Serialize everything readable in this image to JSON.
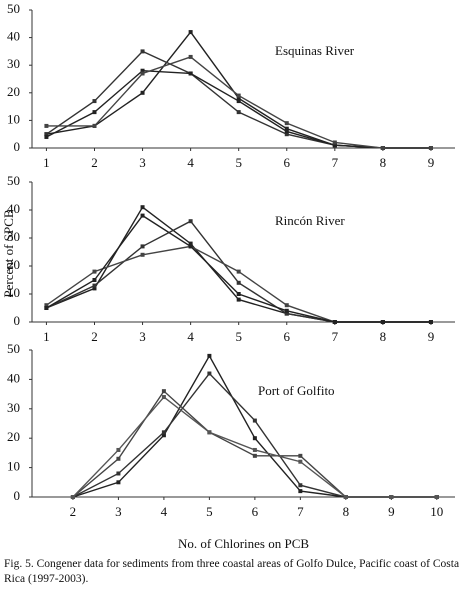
{
  "chart_data": [
    {
      "type": "line",
      "title": "Esquinas River",
      "x": [
        1,
        2,
        3,
        4,
        5,
        6,
        7,
        8,
        9
      ],
      "xlim": [
        0.7,
        9.5
      ],
      "xticks": [
        1,
        2,
        3,
        4,
        5,
        6,
        7,
        8,
        9
      ],
      "ylim": [
        0,
        50
      ],
      "yticks": [
        0,
        10,
        20,
        30,
        40,
        50
      ],
      "series": [
        {
          "color": "#222222",
          "values": [
            5,
            8,
            20,
            42,
            18,
            7,
            1,
            0,
            0
          ]
        },
        {
          "color": "#333333",
          "values": [
            5,
            17,
            35,
            27,
            13,
            5,
            1,
            0,
            0
          ]
        },
        {
          "color": "#222222",
          "values": [
            4,
            13,
            28,
            27,
            17,
            6,
            1,
            0,
            0
          ]
        },
        {
          "color": "#444444",
          "values": [
            8,
            8,
            27,
            33,
            19,
            9,
            2,
            0,
            0
          ]
        }
      ]
    },
    {
      "type": "line",
      "title": "Rincón River",
      "ylabel": "Percent of  SPCB",
      "x": [
        1,
        2,
        3,
        4,
        5,
        6,
        7,
        8,
        9
      ],
      "xlim": [
        0.7,
        9.5
      ],
      "xticks": [
        1,
        2,
        3,
        4,
        5,
        6,
        7,
        8,
        9
      ],
      "ylim": [
        0,
        50
      ],
      "yticks": [
        0,
        10,
        20,
        30,
        40,
        50
      ],
      "series": [
        {
          "color": "#222222",
          "values": [
            5,
            12,
            41,
            28,
            8,
            3,
            0,
            0,
            0
          ]
        },
        {
          "color": "#333333",
          "values": [
            5,
            13,
            27,
            36,
            14,
            3,
            0,
            0,
            0
          ]
        },
        {
          "color": "#444444",
          "values": [
            6,
            18,
            24,
            27,
            18,
            6,
            0,
            0,
            0
          ]
        },
        {
          "color": "#222222",
          "values": [
            5,
            15,
            38,
            27,
            10,
            4,
            0,
            0,
            0
          ]
        }
      ]
    },
    {
      "type": "line",
      "title": "Port of Golfito",
      "xlabel": "No. of Chlorines on PCB",
      "x": [
        2,
        3,
        4,
        5,
        6,
        7,
        8,
        9,
        10
      ],
      "xlim": [
        1.1,
        10.4
      ],
      "xticks": [
        2,
        3,
        4,
        5,
        6,
        7,
        8,
        9,
        10
      ],
      "ylim": [
        0,
        50
      ],
      "yticks": [
        0,
        10,
        20,
        30,
        40,
        50
      ],
      "series": [
        {
          "color": "#222222",
          "values": [
            0,
            5,
            21,
            48,
            20,
            2,
            0,
            0,
            0
          ]
        },
        {
          "color": "#333333",
          "values": [
            0,
            8,
            22,
            42,
            26,
            4,
            0,
            0,
            0
          ]
        },
        {
          "color": "#444444",
          "values": [
            0,
            13,
            36,
            22,
            14,
            14,
            0,
            0,
            0
          ]
        },
        {
          "color": "#555555",
          "values": [
            0,
            16,
            34,
            22,
            16,
            12,
            0,
            0,
            0
          ]
        }
      ]
    }
  ],
  "caption": "Fig. 5. Congener data for sediments from three coastal areas of Golfo Dulce, Pacific coast of Costa Rica (1997-2003)."
}
